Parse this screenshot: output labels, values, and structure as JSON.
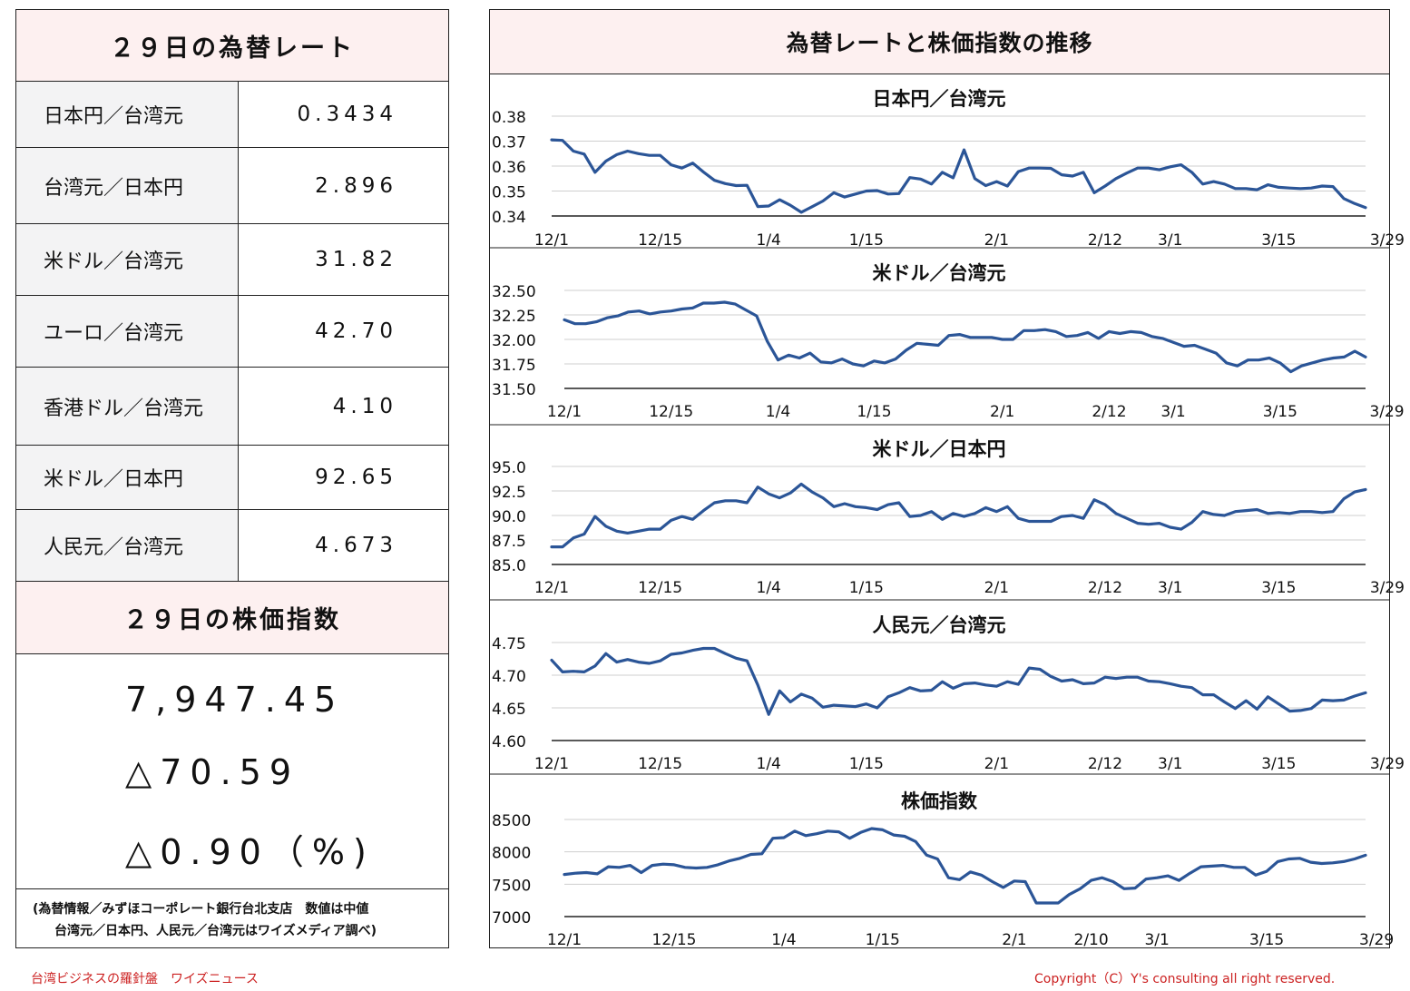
{
  "rates_title": "２９日の為替レート",
  "rates": [
    {
      "label": "日本円／台湾元",
      "value": "0.3434"
    },
    {
      "label": "台湾元／日本円",
      "value": "2.896"
    },
    {
      "label": "米ドル／台湾元",
      "value": "31.82"
    },
    {
      "label": "ユーロ／台湾元",
      "value": "42.70"
    },
    {
      "label": "香港ドル／台湾元",
      "value": "4.10"
    },
    {
      "label": "米ドル／日本円",
      "value": "92.65"
    },
    {
      "label": "人民元／台湾元",
      "value": "4.673"
    }
  ],
  "stock_title": "２９日の株価指数",
  "stock_values": [
    "7,947.45",
    "△70.59",
    "△0.90（%)"
  ],
  "note": {
    "line1": "(為替情報／みずほコーポレート銀行台北支店　数値は中値",
    "line2": "台湾元／日本円、人民元／台湾元はワイズメディア調べ)"
  },
  "charts_title": "為替レートと株価指数の推移",
  "line_color": "#2b5597",
  "chart_data": [
    {
      "type": "line",
      "title": "日本円／台湾元",
      "ylim": [
        0.34,
        0.38
      ],
      "yticks": [
        "0.38",
        "0.37",
        "0.36",
        "0.35",
        "0.34"
      ],
      "xticks": [
        {
          "label": "12/1",
          "i": 0
        },
        {
          "label": "12/15",
          "i": 10
        },
        {
          "label": "1/4",
          "i": 20
        },
        {
          "label": "1/15",
          "i": 29
        },
        {
          "label": "2/1",
          "i": 41
        },
        {
          "label": "2/12",
          "i": 51
        },
        {
          "label": "3/1",
          "i": 57
        },
        {
          "label": "3/15",
          "i": 67
        },
        {
          "label": "3/29",
          "i": 77
        }
      ],
      "values": [
        0.3705,
        0.3703,
        0.366,
        0.3648,
        0.3575,
        0.362,
        0.3646,
        0.366,
        0.365,
        0.3643,
        0.3643,
        0.3605,
        0.3592,
        0.3612,
        0.3576,
        0.3543,
        0.353,
        0.3522,
        0.3523,
        0.3438,
        0.344,
        0.3465,
        0.3443,
        0.3415,
        0.3437,
        0.346,
        0.3493,
        0.3476,
        0.3488,
        0.35,
        0.3502,
        0.3488,
        0.349,
        0.3554,
        0.3548,
        0.3528,
        0.3575,
        0.3553,
        0.3665,
        0.355,
        0.3522,
        0.3538,
        0.352,
        0.3578,
        0.3592,
        0.3592,
        0.3591,
        0.3565,
        0.356,
        0.3575,
        0.3493,
        0.352,
        0.355,
        0.3572,
        0.3592,
        0.3592,
        0.3585,
        0.3597,
        0.3605,
        0.3575,
        0.3528,
        0.3538,
        0.3528,
        0.351,
        0.351,
        0.3505,
        0.3525,
        0.3515,
        0.3512,
        0.351,
        0.3512,
        0.352,
        0.3518,
        0.347,
        0.345,
        0.3434
      ]
    },
    {
      "type": "line",
      "title": "米ドル／台湾元",
      "ylim": [
        31.5,
        32.5
      ],
      "yticks": [
        "32.50",
        "32.25",
        "32.00",
        "31.75",
        "31.50"
      ],
      "xticks": [
        {
          "label": "12/1",
          "i": 0
        },
        {
          "label": "12/15",
          "i": 10
        },
        {
          "label": "1/4",
          "i": 20
        },
        {
          "label": "1/15",
          "i": 29
        },
        {
          "label": "2/1",
          "i": 41
        },
        {
          "label": "2/12",
          "i": 51
        },
        {
          "label": "3/1",
          "i": 57
        },
        {
          "label": "3/15",
          "i": 67
        },
        {
          "label": "3/29",
          "i": 77
        }
      ],
      "values": [
        32.2,
        32.16,
        32.16,
        32.18,
        32.22,
        32.24,
        32.28,
        32.29,
        32.26,
        32.28,
        32.29,
        32.31,
        32.32,
        32.37,
        32.37,
        32.38,
        32.36,
        32.3,
        32.24,
        31.98,
        31.79,
        31.84,
        31.81,
        31.86,
        31.77,
        31.76,
        31.8,
        31.75,
        31.73,
        31.78,
        31.76,
        31.8,
        31.89,
        31.96,
        31.95,
        31.94,
        32.04,
        32.05,
        32.02,
        32.02,
        32.02,
        32.0,
        32.0,
        32.09,
        32.09,
        32.1,
        32.08,
        32.03,
        32.04,
        32.07,
        32.01,
        32.08,
        32.06,
        32.08,
        32.07,
        32.03,
        32.01,
        31.97,
        31.93,
        31.94,
        31.9,
        31.86,
        31.76,
        31.73,
        31.79,
        31.79,
        31.81,
        31.76,
        31.67,
        31.73,
        31.76,
        31.79,
        31.81,
        31.82,
        31.88,
        31.82
      ]
    },
    {
      "type": "line",
      "title": "米ドル／日本円",
      "ylim": [
        85.0,
        95.0
      ],
      "yticks": [
        "95.0",
        "92.5",
        "90.0",
        "87.5",
        "85.0"
      ],
      "xticks": [
        {
          "label": "12/1",
          "i": 0
        },
        {
          "label": "12/15",
          "i": 10
        },
        {
          "label": "1/4",
          "i": 20
        },
        {
          "label": "1/15",
          "i": 29
        },
        {
          "label": "2/1",
          "i": 41
        },
        {
          "label": "2/12",
          "i": 51
        },
        {
          "label": "3/1",
          "i": 57
        },
        {
          "label": "3/15",
          "i": 67
        },
        {
          "label": "3/29",
          "i": 77
        }
      ],
      "values": [
        86.8,
        86.8,
        87.7,
        88.1,
        89.9,
        88.9,
        88.4,
        88.2,
        88.4,
        88.6,
        88.6,
        89.5,
        89.9,
        89.6,
        90.5,
        91.3,
        91.5,
        91.5,
        91.3,
        92.9,
        92.2,
        91.8,
        92.3,
        93.2,
        92.4,
        91.8,
        90.9,
        91.2,
        90.9,
        90.8,
        90.6,
        91.1,
        91.3,
        89.9,
        90.0,
        90.4,
        89.6,
        90.2,
        89.9,
        90.2,
        90.8,
        90.4,
        90.9,
        89.7,
        89.4,
        89.4,
        89.4,
        89.9,
        90.0,
        89.7,
        91.6,
        91.1,
        90.2,
        89.7,
        89.2,
        89.1,
        89.2,
        88.8,
        88.6,
        89.3,
        90.4,
        90.1,
        90.0,
        90.4,
        90.5,
        90.6,
        90.2,
        90.3,
        90.2,
        90.4,
        90.4,
        90.3,
        90.4,
        91.7,
        92.4,
        92.65
      ]
    },
    {
      "type": "line",
      "title": "人民元／台湾元",
      "ylim": [
        4.6,
        4.75
      ],
      "yticks": [
        "4.75",
        "4.70",
        "4.65",
        "4.60"
      ],
      "xticks": [
        {
          "label": "12/1",
          "i": 0
        },
        {
          "label": "12/15",
          "i": 10
        },
        {
          "label": "1/4",
          "i": 20
        },
        {
          "label": "1/15",
          "i": 29
        },
        {
          "label": "2/1",
          "i": 41
        },
        {
          "label": "2/12",
          "i": 51
        },
        {
          "label": "3/1",
          "i": 57
        },
        {
          "label": "3/15",
          "i": 67
        },
        {
          "label": "3/29",
          "i": 77
        }
      ],
      "values": [
        4.723,
        4.705,
        4.706,
        4.705,
        4.714,
        4.733,
        4.72,
        4.724,
        4.72,
        4.718,
        4.722,
        4.732,
        4.734,
        4.738,
        4.741,
        4.741,
        4.733,
        4.726,
        4.722,
        4.685,
        4.64,
        4.676,
        4.659,
        4.671,
        4.665,
        4.651,
        4.654,
        4.653,
        4.652,
        4.656,
        4.65,
        4.667,
        4.673,
        4.681,
        4.676,
        4.677,
        4.69,
        4.68,
        4.687,
        4.688,
        4.685,
        4.683,
        4.69,
        4.686,
        4.711,
        4.709,
        4.698,
        4.691,
        4.693,
        4.687,
        4.688,
        4.697,
        4.695,
        4.697,
        4.697,
        4.691,
        4.69,
        4.687,
        4.683,
        4.681,
        4.67,
        4.67,
        4.659,
        4.649,
        4.661,
        4.648,
        4.667,
        4.656,
        4.645,
        4.646,
        4.649,
        4.662,
        4.661,
        4.662,
        4.668,
        4.673
      ]
    },
    {
      "type": "line",
      "title": "株価指数",
      "ylim": [
        7000,
        8500
      ],
      "yticks": [
        "8500",
        "8000",
        "7500",
        "7000"
      ],
      "xticks": [
        {
          "label": "12/1",
          "i": 0
        },
        {
          "label": "12/15",
          "i": 10
        },
        {
          "label": "1/4",
          "i": 20
        },
        {
          "label": "1/15",
          "i": 29
        },
        {
          "label": "2/1",
          "i": 41
        },
        {
          "label": "2/10",
          "i": 48
        },
        {
          "label": "3/1",
          "i": 54
        },
        {
          "label": "3/15",
          "i": 64
        },
        {
          "label": "3/29",
          "i": 74
        }
      ],
      "values": [
        7650,
        7670,
        7680,
        7660,
        7770,
        7760,
        7790,
        7680,
        7790,
        7810,
        7800,
        7760,
        7750,
        7760,
        7800,
        7860,
        7900,
        7960,
        7970,
        8210,
        8220,
        8320,
        8250,
        8280,
        8320,
        8310,
        8210,
        8300,
        8360,
        8340,
        8260,
        8240,
        8160,
        7950,
        7890,
        7600,
        7570,
        7690,
        7640,
        7540,
        7450,
        7550,
        7540,
        7210,
        7210,
        7210,
        7340,
        7430,
        7560,
        7600,
        7540,
        7430,
        7440,
        7580,
        7600,
        7630,
        7560,
        7670,
        7770,
        7780,
        7790,
        7760,
        7760,
        7640,
        7700,
        7850,
        7890,
        7900,
        7840,
        7820,
        7830,
        7850,
        7890,
        7947.45
      ]
    }
  ],
  "footer_left": "台湾ビジネスの羅針盤　ワイズニュース",
  "footer_right": "Copyright（C）Y's consulting all right reserved."
}
